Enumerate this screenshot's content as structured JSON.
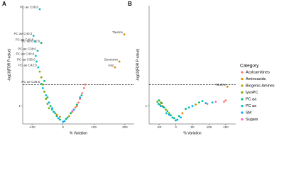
{
  "chart_data": [
    {
      "type": "scatter",
      "panel_label": "A",
      "xlabel": "% Variation",
      "ylabel": "-log10(FDR P-value)",
      "xlim": [
        -130,
        230
      ],
      "ylim": [
        0.75,
        2.4
      ],
      "xticks": [
        -100,
        0,
        100,
        200
      ],
      "yticks": [
        1
      ],
      "threshold": 1.3,
      "series": [
        {
          "color": "#F8766D",
          "x": [
            62,
            68,
            72,
            55,
            50,
            45
          ],
          "values": [
            1.18,
            1.25,
            1.3,
            1.1,
            1.05,
            1.0
          ]
        },
        {
          "color": "#E58700",
          "x": [
            198,
            168,
            40,
            30,
            -20
          ],
          "values": [
            2.0,
            1.54,
            0.98,
            0.92,
            0.88
          ],
          "labels": [
            "Taurine",
            "Asp",
            null,
            null,
            null
          ]
        },
        {
          "color": "#B8A000",
          "x": [
            182,
            20,
            -10
          ],
          "values": [
            1.62,
            0.86,
            0.85
          ],
          "labels": [
            "Serotonin",
            null,
            null
          ]
        },
        {
          "color": "#7CAE00",
          "x": [
            -75,
            -70,
            -65,
            -60,
            -55,
            -50,
            -45
          ],
          "values": [
            1.48,
            1.4,
            1.3,
            1.2,
            1.1,
            1.03,
            0.97
          ]
        },
        {
          "color": "#00BE67",
          "x": [
            -70,
            -60,
            -50,
            -40,
            -30,
            -20,
            -10,
            10,
            25,
            45,
            60
          ],
          "values": [
            1.88,
            1.35,
            1.12,
            1.0,
            0.92,
            0.86,
            0.81,
            0.82,
            0.9,
            1.02,
            1.15
          ],
          "labels": [
            "PC aa C40:6",
            null,
            null,
            null,
            null,
            null,
            null,
            null,
            null,
            null,
            null
          ]
        },
        {
          "color": "#00BFC4",
          "x": [
            -75,
            -95,
            -90,
            -82,
            -88,
            -85,
            -80,
            -70,
            -65,
            -55,
            -35,
            -25
          ],
          "values": [
            2.35,
            1.98,
            1.9,
            1.77,
            1.7,
            1.62,
            1.54,
            1.31,
            1.25,
            1.15,
            0.95,
            0.9
          ],
          "labels": [
            "PC ae C38:6",
            "PC ae C40:2",
            "PC ae C40:6",
            "PC ae C38:0",
            "PC ae C40:4",
            "PC ae C36:0",
            "PC ae C42:0",
            "PC ae C36:5",
            null,
            null,
            null,
            null
          ]
        },
        {
          "color": "#00A9FF",
          "x": [
            -45,
            -35,
            -15,
            0,
            5,
            15,
            35,
            55
          ],
          "values": [
            1.05,
            0.97,
            0.83,
            0.78,
            0.79,
            0.84,
            0.95,
            1.12
          ]
        },
        {
          "color": "#FF61CC",
          "x": [
            30
          ],
          "values": [
            0.93
          ]
        }
      ]
    },
    {
      "type": "scatter",
      "panel_label": "B",
      "xlabel": "% Variation",
      "ylabel": "-log10(FDR P-value)",
      "xlim": [
        -80,
        180
      ],
      "ylim": [
        0.75,
        2.4
      ],
      "xticks": [
        -50,
        0,
        50,
        100,
        150
      ],
      "yticks": [
        1
      ],
      "threshold": 1.3,
      "legend_title": "Category",
      "series": [
        {
          "name": "Acylcarnitines",
          "color": "#F8766D",
          "x": [
            150,
            145,
            95
          ],
          "values": [
            1.08,
            1.06,
            1.03
          ]
        },
        {
          "name": "Aminoacids",
          "color": "#E58700",
          "x": [
            155,
            -40,
            20
          ],
          "values": [
            1.27,
            1.0,
            0.9
          ],
          "labels": [
            "Taurine",
            null,
            null
          ]
        },
        {
          "name": "Biogenic Amines",
          "color": "#B8A000",
          "x": [
            -45,
            60
          ],
          "values": [
            1.05,
            1.02
          ]
        },
        {
          "name": "lysoPC",
          "color": "#7CAE00",
          "x": [
            -55,
            -48,
            -30,
            -20
          ],
          "values": [
            1.06,
            1.02,
            0.95,
            0.9
          ]
        },
        {
          "name": "PC aa",
          "color": "#00BE67",
          "x": [
            -50,
            -42,
            -35,
            -25,
            -15,
            -5,
            10,
            30,
            70
          ],
          "values": [
            1.08,
            1.04,
            0.98,
            0.93,
            0.87,
            0.83,
            0.86,
            0.96,
            1.05
          ]
        },
        {
          "name": "PC ae",
          "color": "#00BFC4",
          "x": [
            -52,
            -38,
            -28,
            -10,
            5,
            40,
            80,
            110
          ],
          "values": [
            1.03,
            0.99,
            0.9,
            0.84,
            0.81,
            0.98,
            1.07,
            1.05
          ]
        },
        {
          "name": "SM",
          "color": "#00A9FF",
          "x": [
            -45,
            -20,
            0,
            15,
            50,
            90
          ],
          "values": [
            1.0,
            0.88,
            0.8,
            0.84,
            1.0,
            1.04
          ]
        },
        {
          "name": "Sugars",
          "color": "#FF61CC",
          "x": [
            120
          ],
          "values": [
            1.06
          ]
        }
      ]
    }
  ]
}
